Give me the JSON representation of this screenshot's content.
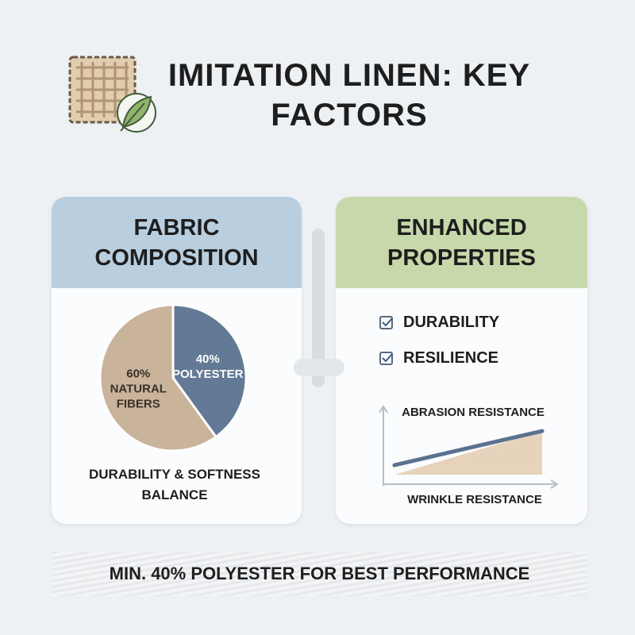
{
  "title": "IMITATION LINEN: KEY FACTORS",
  "left_panel": {
    "title": "FABRIC COMPOSITION",
    "caption": "DURABILITY & SOFTNESS BALANCE"
  },
  "chart_data": {
    "type": "pie",
    "categories": [
      "NATURAL FIBERS",
      "POLYESTER"
    ],
    "values": [
      60,
      40
    ],
    "value_labels": [
      "60%",
      "40%"
    ],
    "colors": [
      "#c9b49b",
      "#627a96"
    ],
    "label_colors": [
      "#3a3128",
      "#ffffff"
    ]
  },
  "right_panel": {
    "title": "ENHANCED PROPERTIES",
    "checklist": [
      "DURABILITY",
      "RESILIENCE"
    ],
    "graph": {
      "y_label": "ABRASION RESISTANCE",
      "x_label": "WRINKLE RESISTANCE"
    }
  },
  "footer": "MIN. 40% POLYESTER FOR BEST PERFORMANCE"
}
